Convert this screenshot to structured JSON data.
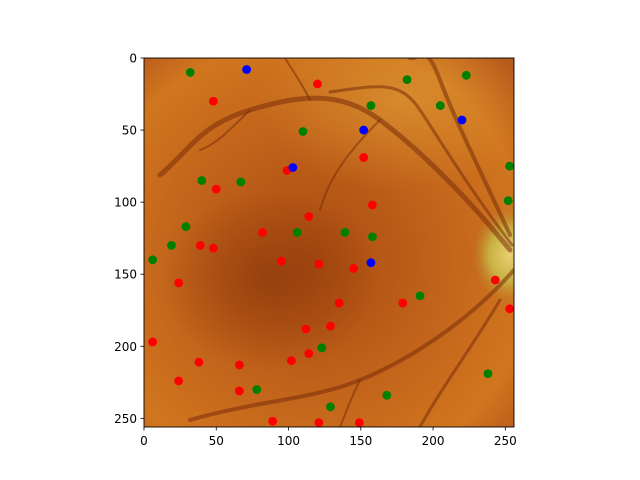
{
  "chart_data": {
    "type": "scatter",
    "background": "fundus retina image",
    "xlim": [
      0,
      256
    ],
    "ylim": [
      256,
      0
    ],
    "y_inverted": true,
    "xticks": [
      "0",
      "50",
      "100",
      "150",
      "200",
      "250"
    ],
    "yticks": [
      "0",
      "50",
      "100",
      "150",
      "200",
      "250"
    ],
    "grid": false,
    "colors": {
      "red": "#ff0000",
      "green": "#008000",
      "blue": "#0000ff"
    },
    "series": [
      {
        "color": "red",
        "points": [
          [
            48,
            30
          ],
          [
            120,
            18
          ],
          [
            152,
            69
          ],
          [
            99,
            78
          ],
          [
            50,
            91
          ],
          [
            158,
            102
          ],
          [
            114,
            110
          ],
          [
            82,
            121
          ],
          [
            39,
            130
          ],
          [
            48,
            132
          ],
          [
            95,
            141
          ],
          [
            121,
            143
          ],
          [
            145,
            146
          ],
          [
            24,
            156
          ],
          [
            243,
            154
          ],
          [
            135,
            170
          ],
          [
            179,
            170
          ],
          [
            253,
            174
          ],
          [
            112,
            188
          ],
          [
            129,
            186
          ],
          [
            6,
            197
          ],
          [
            114,
            205
          ],
          [
            102,
            210
          ],
          [
            38,
            211
          ],
          [
            66,
            213
          ],
          [
            24,
            224
          ],
          [
            66,
            231
          ],
          [
            89,
            252
          ],
          [
            121,
            253
          ],
          [
            149,
            253
          ]
        ]
      },
      {
        "color": "green",
        "points": [
          [
            32,
            10
          ],
          [
            182,
            15
          ],
          [
            223,
            12
          ],
          [
            157,
            33
          ],
          [
            205,
            33
          ],
          [
            110,
            51
          ],
          [
            253,
            75
          ],
          [
            40,
            85
          ],
          [
            67,
            86
          ],
          [
            252,
            99
          ],
          [
            29,
            117
          ],
          [
            106,
            121
          ],
          [
            139,
            121
          ],
          [
            158,
            124
          ],
          [
            19,
            130
          ],
          [
            6,
            140
          ],
          [
            191,
            165
          ],
          [
            123,
            201
          ],
          [
            78,
            230
          ],
          [
            238,
            219
          ],
          [
            168,
            234
          ],
          [
            129,
            242
          ]
        ]
      },
      {
        "color": "blue",
        "points": [
          [
            71,
            8
          ],
          [
            152,
            50
          ],
          [
            220,
            43
          ],
          [
            103,
            76
          ],
          [
            157,
            142
          ]
        ]
      }
    ]
  }
}
